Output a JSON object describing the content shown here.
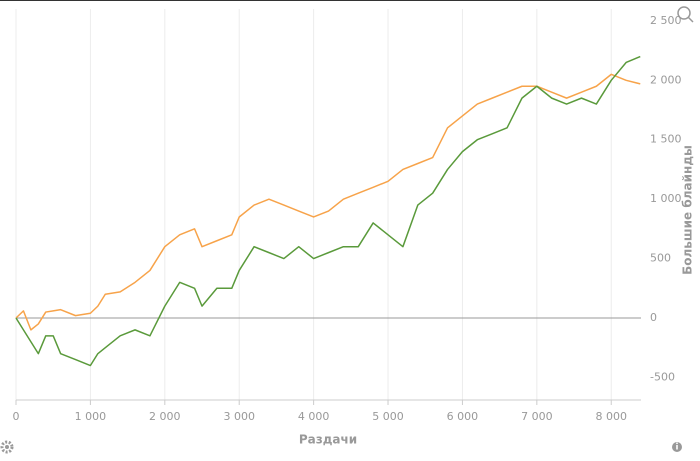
{
  "chart_data": {
    "type": "line",
    "xlabel": "Раздачи",
    "ylabel": "Большие блайнды",
    "x": [
      0,
      100,
      200,
      300,
      400,
      500,
      600,
      800,
      1000,
      1100,
      1200,
      1400,
      1600,
      1800,
      2000,
      2200,
      2400,
      2500,
      2700,
      2900,
      3000,
      3200,
      3400,
      3600,
      3800,
      4000,
      4200,
      4400,
      4600,
      4800,
      5000,
      5200,
      5400,
      5600,
      5800,
      6000,
      6200,
      6400,
      6600,
      6800,
      7000,
      7200,
      7400,
      7600,
      7800,
      8000,
      8200,
      8390
    ],
    "series": [
      {
        "name": "orange",
        "color": "#f7a34a",
        "values": [
          0,
          60,
          -100,
          -50,
          50,
          60,
          70,
          20,
          40,
          100,
          200,
          220,
          300,
          400,
          600,
          700,
          750,
          600,
          650,
          700,
          850,
          950,
          1000,
          950,
          900,
          850,
          900,
          1000,
          1050,
          1100,
          1150,
          1250,
          1300,
          1350,
          1600,
          1700,
          1800,
          1850,
          1900,
          1950,
          1950,
          1900,
          1850,
          1900,
          1950,
          2050,
          2000,
          1970
        ]
      },
      {
        "name": "green",
        "color": "#5a9a3b",
        "values": [
          0,
          -100,
          -200,
          -300,
          -150,
          -150,
          -300,
          -350,
          -400,
          -300,
          -250,
          -150,
          -100,
          -150,
          100,
          300,
          250,
          100,
          250,
          250,
          400,
          600,
          550,
          500,
          600,
          500,
          550,
          600,
          600,
          800,
          700,
          600,
          950,
          1050,
          1250,
          1400,
          1500,
          1550,
          1600,
          1850,
          1950,
          1850,
          1800,
          1850,
          1800,
          2000,
          2150,
          2200
        ]
      }
    ],
    "xlim": [
      0,
      8400
    ],
    "xticks": [
      0,
      {
        "value": 1000,
        "label": "1 000"
      },
      {
        "value": 2000,
        "label": "2 000"
      },
      {
        "value": 3000,
        "label": "3 000"
      },
      {
        "value": 4000,
        "label": "4 000"
      },
      {
        "value": 5000,
        "label": "5 000"
      },
      {
        "value": 6000,
        "label": "6 000"
      },
      {
        "value": 7000,
        "label": "7 000"
      },
      {
        "value": 8000,
        "label": "8 000"
      }
    ],
    "ylim": [
      -690,
      2600
    ],
    "yticks": [
      -500,
      0,
      500,
      {
        "value": 1000,
        "label": "1 000"
      },
      {
        "value": 1500,
        "label": "1 500"
      },
      {
        "value": 2000,
        "label": "2 000"
      },
      {
        "value": 2500,
        "label": "2 500"
      }
    ],
    "grid": "x"
  }
}
